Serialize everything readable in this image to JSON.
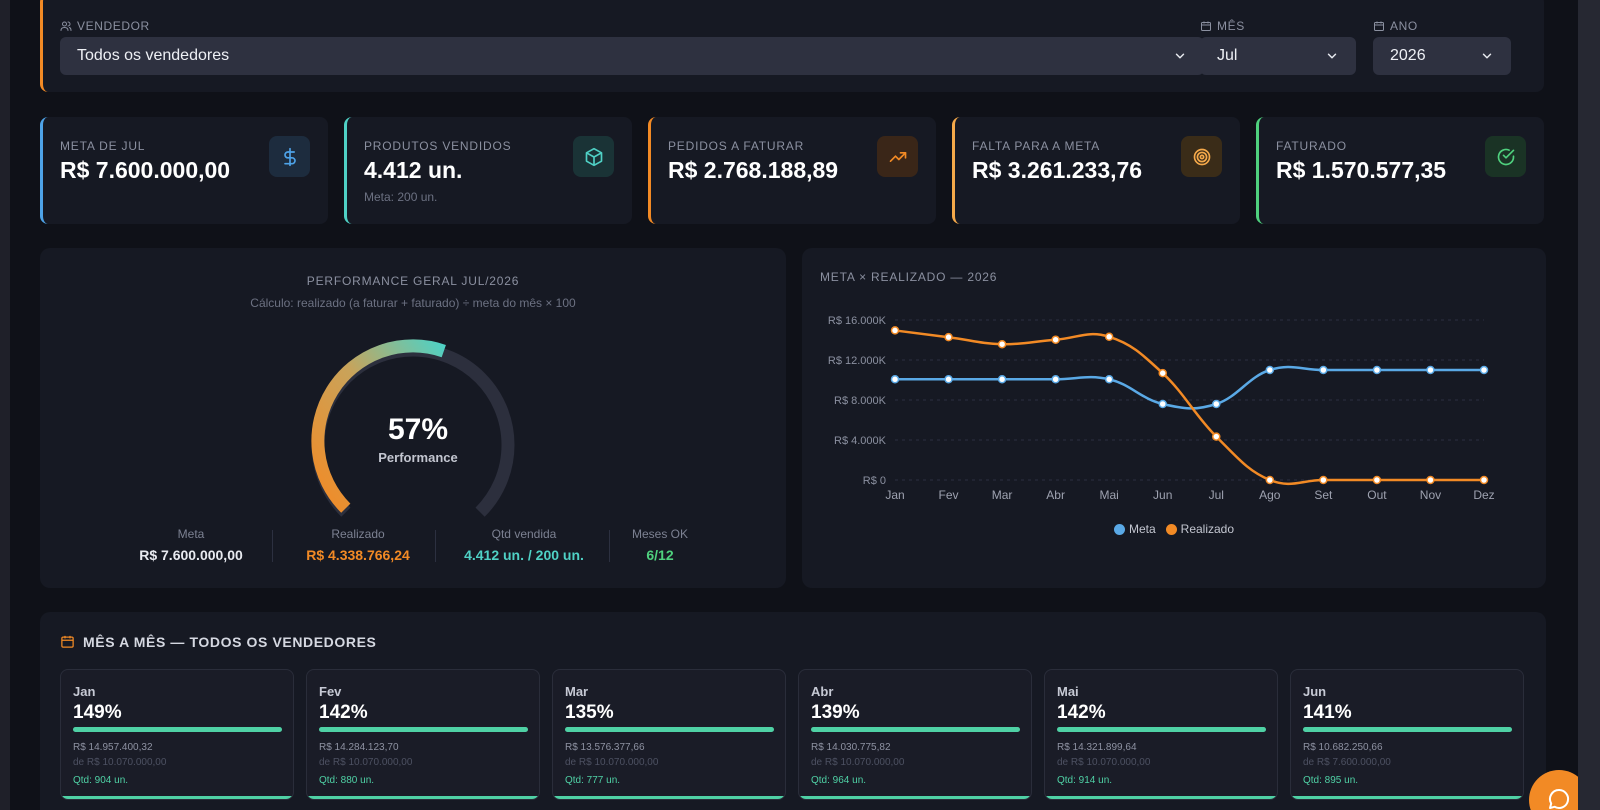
{
  "filters": {
    "vendor_label": "VENDEDOR",
    "vendor_value": "Todos os vendedores",
    "month_label": "MÊS",
    "month_value": "Jul",
    "year_label": "ANO",
    "year_value": "2026"
  },
  "kpis": [
    {
      "label": "META DE JUL",
      "value": "R$ 7.600.000,00",
      "sub": "",
      "color": "#4ea3e8",
      "icon": "dollar-icon"
    },
    {
      "label": "PRODUTOS VENDIDOS",
      "value": "4.412 un.",
      "sub": "Meta: 200 un.",
      "color": "#4fd1c5",
      "icon": "box-icon"
    },
    {
      "label": "PEDIDOS A FATURAR",
      "value": "R$ 2.768.188,89",
      "sub": "",
      "color": "#f28a25",
      "icon": "trending-up-icon"
    },
    {
      "label": "FALTA PARA A META",
      "value": "R$ 3.261.233,76",
      "sub": "",
      "color": "#f5a94a",
      "icon": "target-icon"
    },
    {
      "label": "FATURADO",
      "value": "R$ 1.570.577,35",
      "sub": "",
      "color": "#4fd17e",
      "icon": "check-circle-icon"
    }
  ],
  "performance": {
    "title": "PERFORMANCE GERAL JUL/2026",
    "subtitle": "Cálculo: realizado (a faturar + faturado) ÷ meta do mês × 100",
    "percent": 57,
    "percent_text": "57%",
    "caption": "Performance",
    "stats": [
      {
        "label": "Meta",
        "value": "R$ 7.600.000,00",
        "color": "#e8eaf0"
      },
      {
        "label": "Realizado",
        "value": "R$ 4.338.766,24",
        "color": "#f28a25"
      },
      {
        "label": "Qtd vendida",
        "value": "4.412 un. / 200 un.",
        "color": "#4fd1c5"
      },
      {
        "label": "Meses OK",
        "value": "6/12",
        "color": "#4fd17e"
      }
    ]
  },
  "chart_data": {
    "type": "line",
    "title": "META × REALIZADO — 2026",
    "categories": [
      "Jan",
      "Fev",
      "Mar",
      "Abr",
      "Mai",
      "Jun",
      "Jul",
      "Ago",
      "Set",
      "Out",
      "Nov",
      "Dez"
    ],
    "series": [
      {
        "name": "Meta",
        "color": "#5aa9e6",
        "values": [
          10070,
          10070,
          10070,
          10070,
          10070,
          7600,
          7600,
          11000,
          11000,
          11000,
          11000,
          11000
        ]
      },
      {
        "name": "Realizado",
        "color": "#f28a25",
        "values": [
          14957,
          14284,
          13576,
          14031,
          14322,
          10682,
          4339,
          0,
          0,
          0,
          0,
          0
        ]
      }
    ],
    "yticks": [
      "R$ 0",
      "R$ 4.000K",
      "R$ 8.000K",
      "R$ 12.000K",
      "R$ 16.000K"
    ],
    "ylim": [
      0,
      16000
    ],
    "grid": true,
    "legend_position": "bottom"
  },
  "monthly": {
    "title": "MÊS A MÊS — TODOS OS VENDEDORES",
    "cards": [
      {
        "month": "Jan",
        "pct": "149%",
        "fill": 1.0,
        "realized": "R$ 14.957.400,32",
        "target": "de R$ 10.070.000,00",
        "qty": "Qtd: 904 un."
      },
      {
        "month": "Fev",
        "pct": "142%",
        "fill": 1.0,
        "realized": "R$ 14.284.123,70",
        "target": "de R$ 10.070.000,00",
        "qty": "Qtd: 880 un."
      },
      {
        "month": "Mar",
        "pct": "135%",
        "fill": 1.0,
        "realized": "R$ 13.576.377,66",
        "target": "de R$ 10.070.000,00",
        "qty": "Qtd: 777 un."
      },
      {
        "month": "Abr",
        "pct": "139%",
        "fill": 1.0,
        "realized": "R$ 14.030.775,82",
        "target": "de R$ 10.070.000,00",
        "qty": "Qtd: 964 un."
      },
      {
        "month": "Mai",
        "pct": "142%",
        "fill": 1.0,
        "realized": "R$ 14.321.899,64",
        "target": "de R$ 10.070.000,00",
        "qty": "Qtd: 914 un."
      },
      {
        "month": "Jun",
        "pct": "141%",
        "fill": 1.0,
        "realized": "R$ 10.682.250,66",
        "target": "de R$ 7.600.000,00",
        "qty": "Qtd: 895 un."
      }
    ]
  },
  "fab": {
    "icon": "chat-icon"
  }
}
